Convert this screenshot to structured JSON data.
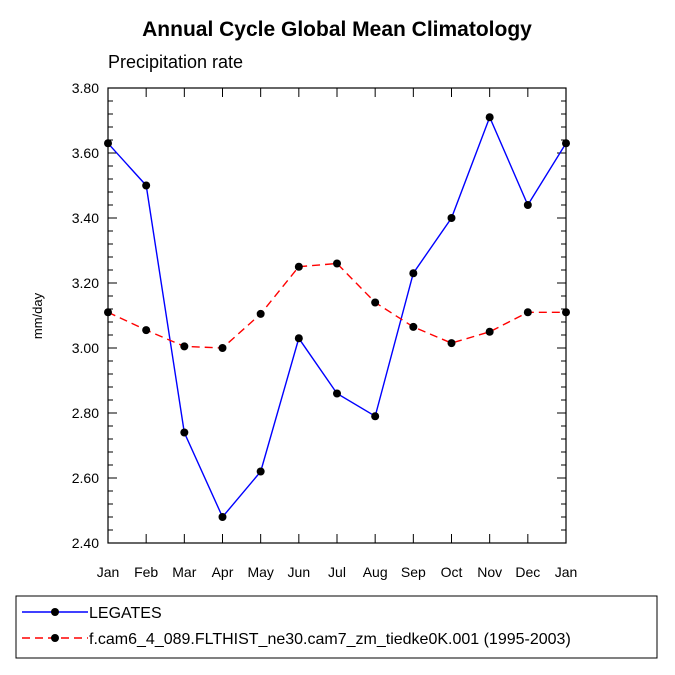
{
  "chart_data": {
    "type": "line",
    "title": "Annual Cycle Global Mean Climatology",
    "subtitle": "Precipitation rate",
    "ylabel": "mm/day",
    "xlabel": "",
    "categories": [
      "Jan",
      "Feb",
      "Mar",
      "Apr",
      "May",
      "Jun",
      "Jul",
      "Aug",
      "Sep",
      "Oct",
      "Nov",
      "Dec",
      "Jan"
    ],
    "ylim": [
      2.4,
      3.8
    ],
    "yticks": [
      "2.40",
      "2.60",
      "2.80",
      "3.00",
      "3.20",
      "3.40",
      "3.60",
      "3.80"
    ],
    "grid": false,
    "legend_position": "bottom",
    "series": [
      {
        "name": "LEGATES",
        "color": "#0000ff",
        "dash": "solid",
        "marker": "circle",
        "values": [
          3.63,
          3.5,
          2.74,
          2.48,
          2.62,
          3.03,
          2.86,
          2.79,
          3.23,
          3.4,
          3.71,
          3.44,
          3.63
        ]
      },
      {
        "name": "f.cam6_4_089.FLTHIST_ne30.cam7_zm_tiedke0K.001 (1995-2003)",
        "color": "#ff0000",
        "dash": "dashed",
        "marker": "circle",
        "values": [
          3.11,
          3.055,
          3.005,
          3.0,
          3.105,
          3.25,
          3.26,
          3.14,
          3.065,
          3.015,
          3.05,
          3.11,
          3.11
        ]
      }
    ]
  }
}
